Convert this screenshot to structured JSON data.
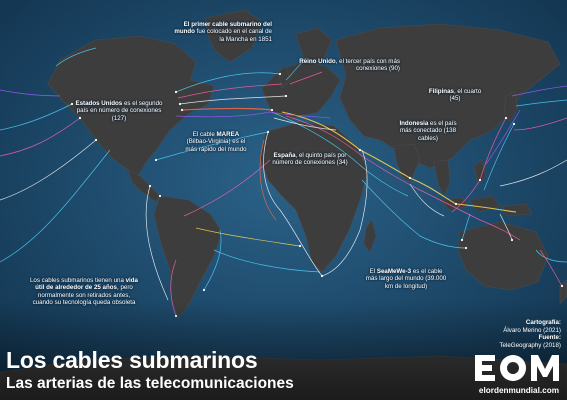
{
  "map": {
    "ocean_color": "#1f4f73",
    "land_color": "#3a3a3a",
    "cable_colors": [
      "#ff5fae",
      "#4fd3ff",
      "#ffffff",
      "#ff6a3d",
      "#a05cff",
      "#ffd84d"
    ]
  },
  "annotations": {
    "first_cable": {
      "bold": "El primer cable submarino del mundo",
      "rest": " fue colocado en el canal de la Mancha en 1851"
    },
    "usa": {
      "bold": "Estados Unidos",
      "rest": " es el segundo país en número de conexiones (127)"
    },
    "uk": {
      "bold": "Reino Unido",
      "rest": ", el tercer país con más conexiones (90)"
    },
    "philippines": {
      "bold": "Filipinas",
      "rest": ", el cuarto (45)"
    },
    "marea": {
      "pre": "El cable ",
      "bold": "MAREA",
      "rest": " (Bilbao-Virginia) es el más rápido del mundo"
    },
    "spain": {
      "bold": "España",
      "rest": ", el quinto país por número de conexiones (34)"
    },
    "indonesia": {
      "bold": "Indonesia",
      "rest": " es el país más conectado (138 cables)"
    },
    "seamewe": {
      "pre": "El ",
      "bold": "SeaMeWe-3",
      "rest": " es el cable más largo del mundo (39.000 km de longitud)"
    },
    "lifespan": {
      "pre": "Los cables submarinos tienen una ",
      "bold": "vida útil de alrededor de 25 años",
      "rest": ", pero normalmente son retirados antes, cuando su tecnología queda obsoleta"
    }
  },
  "credits": {
    "cartography_label": "Cartografía:",
    "cartography_value": "Álvaro Merino (2021)",
    "source_label": "Fuente:",
    "source_value": "TeleGeography (2018)"
  },
  "title": "Los cables submarinos",
  "subtitle": "Las arterias de las telecomunicaciones",
  "logo_text": "EOM",
  "site": "elordenmundial.com"
}
